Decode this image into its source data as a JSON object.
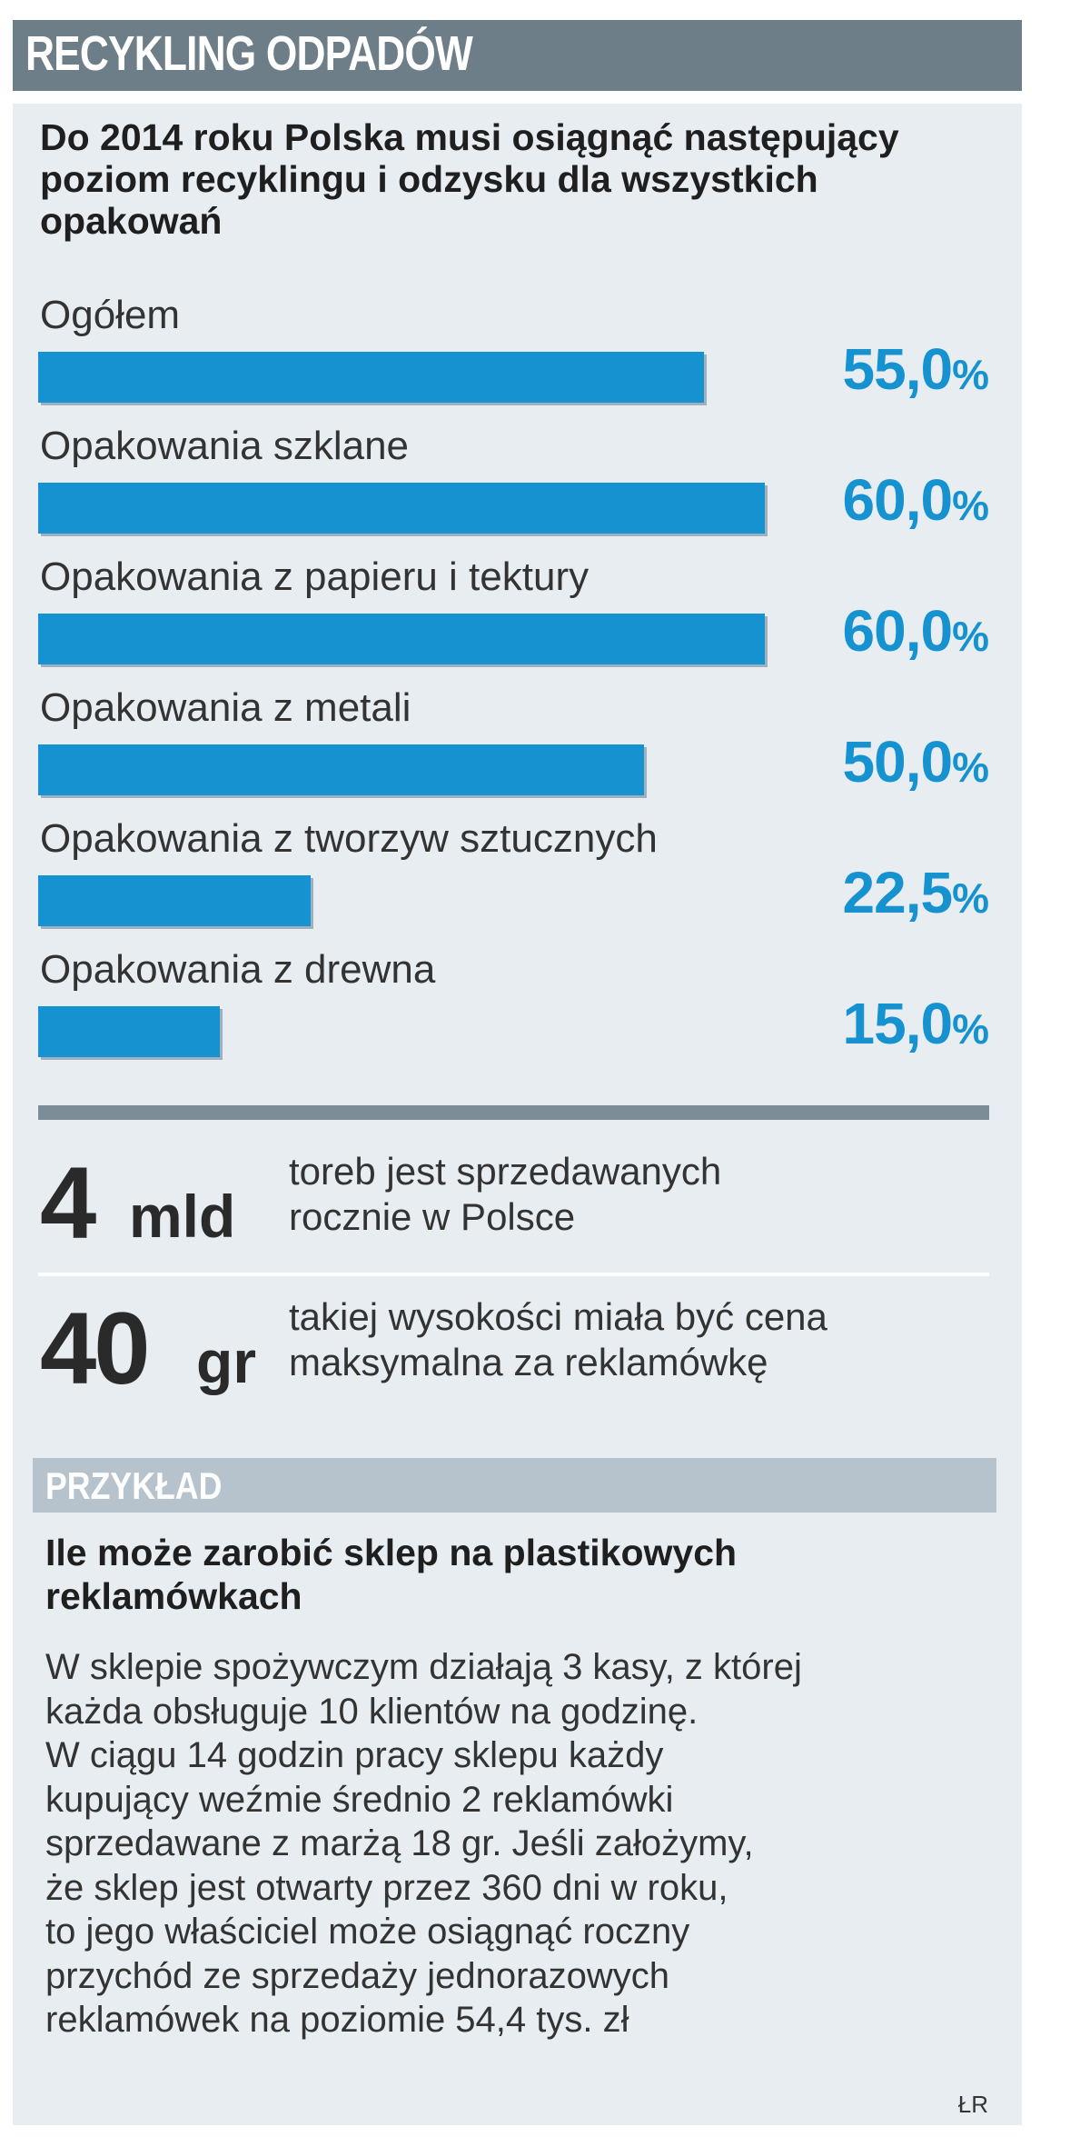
{
  "header": {
    "title": "RECYKLING ODPADÓW"
  },
  "intro": "Do 2014 roku Polska musi osiągnąć następujący poziom recyklingu i odzysku dla wszystkich opakowań",
  "chart_data": {
    "type": "bar",
    "orientation": "horizontal",
    "categories": [
      "Ogółem",
      "Opakowania szklane",
      "Opakowania z papieru i tektury",
      "Opakowania z metali",
      "Opakowania z tworzyw sztucznych",
      "Opakowania z drewna"
    ],
    "values": [
      55.0,
      60.0,
      60.0,
      50.0,
      22.5,
      15.0
    ],
    "value_labels": [
      "55,0",
      "60,0",
      "60,0",
      "50,0",
      "22,5",
      "15,0"
    ],
    "unit": "%",
    "xlim": [
      0,
      60
    ],
    "bar_color": "#1592cf",
    "value_color": "#1592cf",
    "grid": false,
    "legend": false
  },
  "stats": [
    {
      "number": "4",
      "unit": "mld",
      "desc_line1": "toreb jest sprzedawanych",
      "desc_line2": "rocznie w Polsce"
    },
    {
      "number": "40",
      "unit": "gr",
      "desc_line1": "takiej wysokości miała być cena",
      "desc_line2": "maksymalna za reklamówkę"
    }
  ],
  "example": {
    "label": "PRZYKŁAD",
    "title": "Ile może zarobić sklep na plastikowych reklamówkach",
    "body": "W sklepie spożywczym działają 3 kasy, z której\nkażda obsługuje 10 klientów na godzinę.\nW ciągu 14 godzin pracy sklepu każdy\nkupujący weźmie średnio 2 reklamówki\nsprzedawane z marżą 18 gr. Jeśli założymy,\nże sklep jest otwarty przez 360 dni w roku,\nto jego właściciel może osiągnąć roczny\nprzychód ze sprzedaży jednorazowych\nreklamówek na poziomie 54,4 tys. zł"
  },
  "credit": "ŁR",
  "colors": {
    "header_bg": "#6e7e89",
    "panel_bg": "#e8edf1",
    "accent": "#1592cf",
    "example_bar_bg": "#b7c3cc"
  }
}
